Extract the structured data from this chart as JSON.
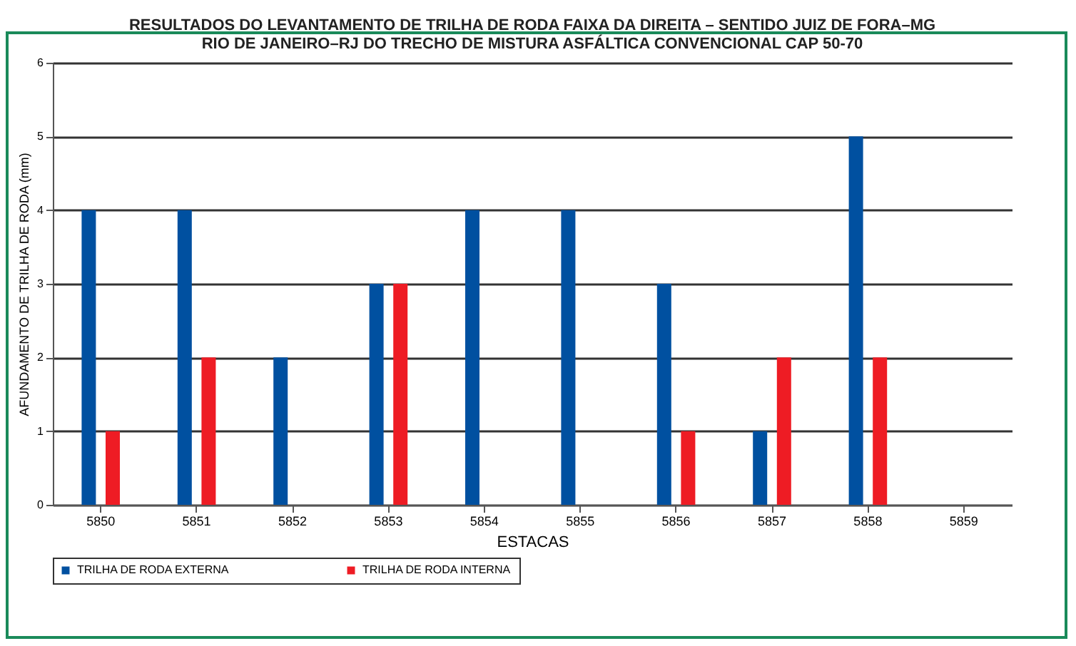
{
  "chart_data": {
    "type": "bar",
    "title": "RESULTADOS DO LEVANTAMENTO DE TRILHA DE RODA FAIXA DA DIREITA – SENTIDO JUIZ DE FORA–MG\nRIO DE JANEIRO–RJ DO TRECHO DE MISTURA ASFÁLTICA CONVENCIONAL CAP 50-70",
    "xlabel": "ESTACAS",
    "ylabel": "AFUNDAMENTO DE TRILHA DE RODA (mm)",
    "categories": [
      "5850",
      "5851",
      "5852",
      "5853",
      "5854",
      "5855",
      "5856",
      "5857",
      "5858",
      "5859"
    ],
    "series": [
      {
        "name": "TRILHA DE RODA EXTERNA",
        "color": "#0050a0",
        "values": [
          4,
          4,
          2,
          3,
          4,
          4,
          3,
          1,
          5,
          null
        ]
      },
      {
        "name": "TRILHA DE RODA INTERNA",
        "color": "#ee1c24",
        "values": [
          1,
          2,
          null,
          3,
          null,
          null,
          1,
          2,
          2,
          null
        ]
      }
    ],
    "ylim": [
      0,
      6
    ],
    "yticks": [
      0,
      1,
      2,
      3,
      4,
      5,
      6
    ],
    "grid": "y",
    "legend": "bottom"
  }
}
